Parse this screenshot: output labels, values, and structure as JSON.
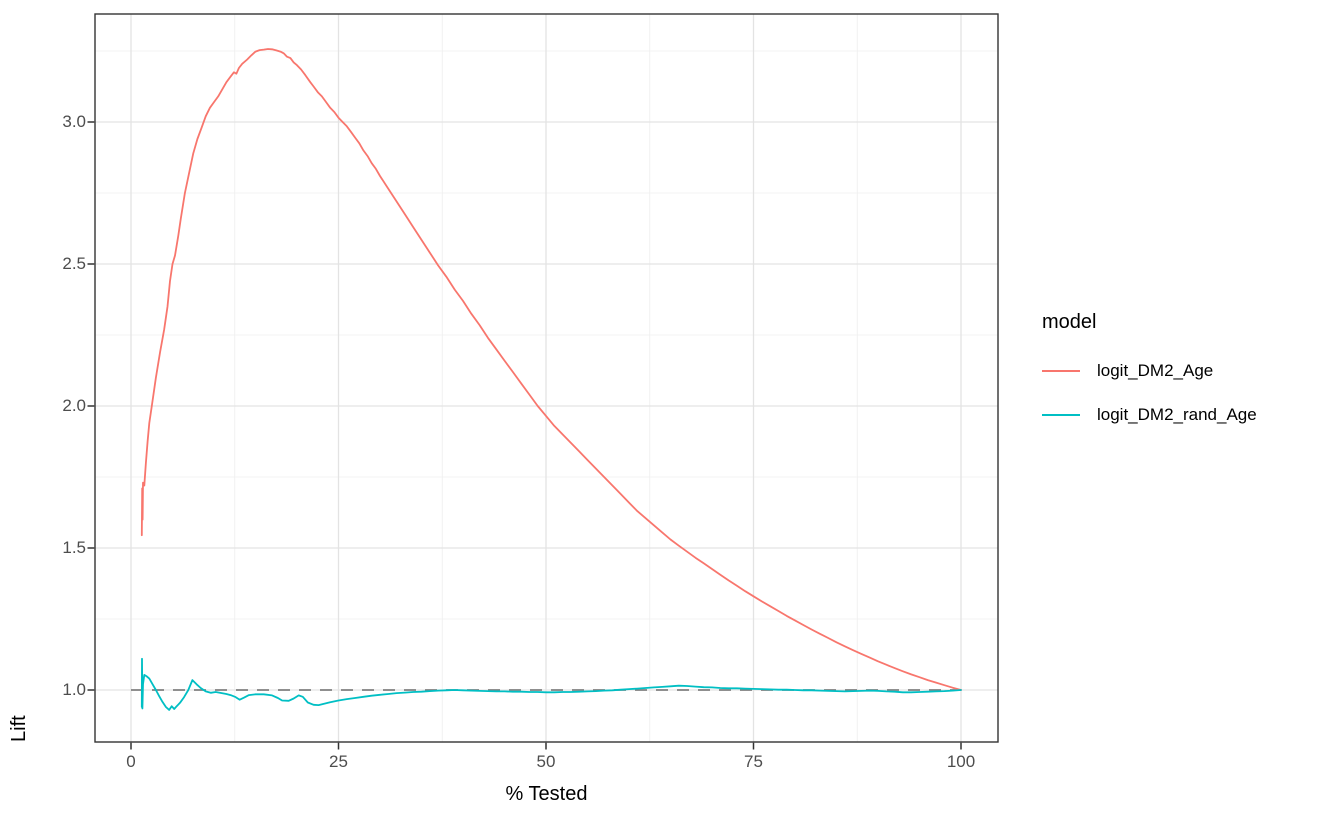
{
  "legend": {
    "title": "model",
    "items": [
      {
        "label": "logit_DM2_Age",
        "color": "#F8766D"
      },
      {
        "label": "logit_DM2_rand_Age",
        "color": "#00BFC4"
      }
    ]
  },
  "colors": {
    "series_red": "#F8766D",
    "series_teal": "#00BFC4",
    "reference_dash": "#808080",
    "grid_major": "#E3E3E3",
    "grid_minor": "#EFEFEF",
    "panel_border": "#343434",
    "tick_mark": "#333333",
    "tick_label": "#4d4d4d"
  },
  "chart_data": {
    "type": "line",
    "title": "",
    "xlabel": "% Tested",
    "ylabel": "Lift",
    "xlim": [
      0,
      100
    ],
    "ylim": [
      0.82,
      3.38
    ],
    "grid": true,
    "legend_position": "right",
    "legend_title": "model",
    "x_ticks": [
      {
        "value": 0,
        "label": "0"
      },
      {
        "value": 25,
        "label": "25"
      },
      {
        "value": 50,
        "label": "50"
      },
      {
        "value": 75,
        "label": "75"
      },
      {
        "value": 100,
        "label": "100"
      }
    ],
    "y_ticks": [
      {
        "value": 1.0,
        "label": "1.0"
      },
      {
        "value": 1.5,
        "label": "1.5"
      },
      {
        "value": 2.0,
        "label": "2.0"
      },
      {
        "value": 2.5,
        "label": "2.5"
      },
      {
        "value": 3.0,
        "label": "3.0"
      }
    ],
    "x_minor_gridlines": [
      12.5,
      37.5,
      62.5,
      87.5
    ],
    "y_minor_gridlines": [
      1.25,
      1.75,
      2.25,
      2.75,
      3.25
    ],
    "reference_line": {
      "y": 1.0,
      "style": "dashed",
      "color": "#808080",
      "x_start": 0,
      "x_end": 100
    },
    "series": [
      {
        "name": "logit_DM2_Age",
        "color": "#F8766D",
        "points": [
          [
            1.3,
            1.545
          ],
          [
            1.35,
            1.71
          ],
          [
            1.4,
            1.6
          ],
          [
            1.45,
            1.73
          ],
          [
            1.6,
            1.72
          ],
          [
            1.8,
            1.8
          ],
          [
            2,
            1.875
          ],
          [
            2.2,
            1.94
          ],
          [
            2.5,
            2.0
          ],
          [
            3,
            2.1
          ],
          [
            3.5,
            2.19
          ],
          [
            4,
            2.27
          ],
          [
            4.4,
            2.35
          ],
          [
            4.7,
            2.44
          ],
          [
            5,
            2.5
          ],
          [
            5.3,
            2.53
          ],
          [
            5.7,
            2.6
          ],
          [
            6,
            2.66
          ],
          [
            6.5,
            2.75
          ],
          [
            7,
            2.82
          ],
          [
            7.5,
            2.89
          ],
          [
            8,
            2.94
          ],
          [
            8.5,
            2.98
          ],
          [
            9,
            3.02
          ],
          [
            9.5,
            3.05
          ],
          [
            10,
            3.07
          ],
          [
            10.5,
            3.09
          ],
          [
            11,
            3.115
          ],
          [
            11.5,
            3.14
          ],
          [
            12,
            3.16
          ],
          [
            12.4,
            3.175
          ],
          [
            12.7,
            3.17
          ],
          [
            13,
            3.19
          ],
          [
            13.4,
            3.205
          ],
          [
            14,
            3.22
          ],
          [
            14.5,
            3.235
          ],
          [
            15,
            3.248
          ],
          [
            15.5,
            3.253
          ],
          [
            16,
            3.255
          ],
          [
            16.5,
            3.257
          ],
          [
            17,
            3.256
          ],
          [
            17.5,
            3.252
          ],
          [
            18,
            3.248
          ],
          [
            18.4,
            3.242
          ],
          [
            18.8,
            3.23
          ],
          [
            19.2,
            3.225
          ],
          [
            19.6,
            3.21
          ],
          [
            20,
            3.2
          ],
          [
            20.5,
            3.185
          ],
          [
            21,
            3.165
          ],
          [
            21.6,
            3.14
          ],
          [
            22,
            3.125
          ],
          [
            22.5,
            3.105
          ],
          [
            23,
            3.09
          ],
          [
            23.5,
            3.07
          ],
          [
            24,
            3.05
          ],
          [
            24.5,
            3.035
          ],
          [
            25,
            3.015
          ],
          [
            25.5,
            3.0
          ],
          [
            26,
            2.985
          ],
          [
            26.5,
            2.965
          ],
          [
            27,
            2.945
          ],
          [
            27.5,
            2.925
          ],
          [
            28,
            2.9
          ],
          [
            28.5,
            2.88
          ],
          [
            29,
            2.855
          ],
          [
            29.5,
            2.835
          ],
          [
            30,
            2.81
          ],
          [
            31,
            2.765
          ],
          [
            32,
            2.72
          ],
          [
            33,
            2.675
          ],
          [
            34,
            2.63
          ],
          [
            35,
            2.585
          ],
          [
            36,
            2.54
          ],
          [
            37,
            2.495
          ],
          [
            38,
            2.455
          ],
          [
            39,
            2.41
          ],
          [
            40,
            2.37
          ],
          [
            41,
            2.325
          ],
          [
            42,
            2.285
          ],
          [
            43,
            2.24
          ],
          [
            44,
            2.2
          ],
          [
            45,
            2.16
          ],
          [
            46,
            2.12
          ],
          [
            47,
            2.08
          ],
          [
            48,
            2.04
          ],
          [
            49,
            2.0
          ],
          [
            50,
            1.965
          ],
          [
            51,
            1.93
          ],
          [
            52,
            1.9
          ],
          [
            53,
            1.87
          ],
          [
            54,
            1.84
          ],
          [
            55,
            1.81
          ],
          [
            56,
            1.78
          ],
          [
            57,
            1.75
          ],
          [
            58,
            1.72
          ],
          [
            59,
            1.69
          ],
          [
            60,
            1.66
          ],
          [
            61,
            1.63
          ],
          [
            62,
            1.605
          ],
          [
            63,
            1.58
          ],
          [
            64,
            1.555
          ],
          [
            65,
            1.53
          ],
          [
            66,
            1.508
          ],
          [
            67,
            1.487
          ],
          [
            68,
            1.466
          ],
          [
            69,
            1.446
          ],
          [
            70,
            1.426
          ],
          [
            71,
            1.406
          ],
          [
            72,
            1.386
          ],
          [
            73,
            1.367
          ],
          [
            74,
            1.348
          ],
          [
            75,
            1.33
          ],
          [
            76,
            1.312
          ],
          [
            77,
            1.295
          ],
          [
            78,
            1.278
          ],
          [
            79,
            1.261
          ],
          [
            80,
            1.245
          ],
          [
            81,
            1.229
          ],
          [
            82,
            1.213
          ],
          [
            83,
            1.198
          ],
          [
            84,
            1.183
          ],
          [
            85,
            1.168
          ],
          [
            86,
            1.154
          ],
          [
            87,
            1.14
          ],
          [
            88,
            1.127
          ],
          [
            89,
            1.114
          ],
          [
            90,
            1.101
          ],
          [
            91,
            1.089
          ],
          [
            92,
            1.077
          ],
          [
            93,
            1.066
          ],
          [
            94,
            1.055
          ],
          [
            95,
            1.045
          ],
          [
            96,
            1.035
          ],
          [
            97,
            1.026
          ],
          [
            98,
            1.017
          ],
          [
            99,
            1.008
          ],
          [
            100,
            1.0
          ]
        ]
      },
      {
        "name": "logit_DM2_rand_Age",
        "color": "#00BFC4",
        "points": [
          [
            1.3,
            0.94
          ],
          [
            1.33,
            1.11
          ],
          [
            1.37,
            0.935
          ],
          [
            1.45,
            1.02
          ],
          [
            1.6,
            1.053
          ],
          [
            1.9,
            1.048
          ],
          [
            2.2,
            1.04
          ],
          [
            2.6,
            1.02
          ],
          [
            3,
            1.0
          ],
          [
            3.4,
            0.978
          ],
          [
            3.8,
            0.958
          ],
          [
            4.2,
            0.94
          ],
          [
            4.6,
            0.93
          ],
          [
            4.9,
            0.943
          ],
          [
            5.2,
            0.933
          ],
          [
            5.5,
            0.943
          ],
          [
            5.9,
            0.955
          ],
          [
            6.4,
            0.975
          ],
          [
            6.9,
            1.0
          ],
          [
            7.4,
            1.035
          ],
          [
            7.9,
            1.02
          ],
          [
            8.4,
            1.007
          ],
          [
            9,
            0.995
          ],
          [
            9.6,
            0.99
          ],
          [
            10.2,
            0.993
          ],
          [
            10.7,
            0.99
          ],
          [
            11.5,
            0.986
          ],
          [
            12,
            0.982
          ],
          [
            12.6,
            0.975
          ],
          [
            13.1,
            0.966
          ],
          [
            13.6,
            0.973
          ],
          [
            14.2,
            0.982
          ],
          [
            15,
            0.985
          ],
          [
            16,
            0.985
          ],
          [
            17,
            0.981
          ],
          [
            17.7,
            0.972
          ],
          [
            18.2,
            0.963
          ],
          [
            19,
            0.962
          ],
          [
            19.6,
            0.97
          ],
          [
            20.2,
            0.981
          ],
          [
            20.7,
            0.976
          ],
          [
            21.3,
            0.956
          ],
          [
            22,
            0.948
          ],
          [
            22.6,
            0.947
          ],
          [
            23.2,
            0.951
          ],
          [
            24,
            0.957
          ],
          [
            25,
            0.963
          ],
          [
            26,
            0.968
          ],
          [
            27,
            0.972
          ],
          [
            28,
            0.976
          ],
          [
            29,
            0.98
          ],
          [
            30,
            0.983
          ],
          [
            31,
            0.986
          ],
          [
            32,
            0.989
          ],
          [
            33,
            0.991
          ],
          [
            34,
            0.993
          ],
          [
            35,
            0.994
          ],
          [
            36,
            0.996
          ],
          [
            37,
            0.998
          ],
          [
            38,
            0.999
          ],
          [
            39,
            1.0
          ],
          [
            40,
            0.999
          ],
          [
            41,
            0.998
          ],
          [
            42,
            0.997
          ],
          [
            43,
            0.996
          ],
          [
            44,
            0.995
          ],
          [
            45,
            0.995
          ],
          [
            46,
            0.994
          ],
          [
            47,
            0.994
          ],
          [
            48,
            0.993
          ],
          [
            49,
            0.993
          ],
          [
            50,
            0.992
          ],
          [
            51,
            0.992
          ],
          [
            52,
            0.993
          ],
          [
            53,
            0.993
          ],
          [
            54,
            0.994
          ],
          [
            55,
            0.995
          ],
          [
            56,
            0.996
          ],
          [
            57,
            0.998
          ],
          [
            58,
            0.999
          ],
          [
            59,
            1.001
          ],
          [
            60,
            1.003
          ],
          [
            61,
            1.005
          ],
          [
            62,
            1.007
          ],
          [
            63,
            1.009
          ],
          [
            64,
            1.011
          ],
          [
            65,
            1.013
          ],
          [
            66,
            1.015
          ],
          [
            67,
            1.014
          ],
          [
            68,
            1.012
          ],
          [
            69,
            1.01
          ],
          [
            70,
            1.009
          ],
          [
            71,
            1.007
          ],
          [
            72,
            1.006
          ],
          [
            73,
            1.006
          ],
          [
            74,
            1.005
          ],
          [
            75,
            1.004
          ],
          [
            76,
            1.003
          ],
          [
            77,
            1.002
          ],
          [
            78,
            1.001
          ],
          [
            79,
            1.001
          ],
          [
            80,
            1.0
          ],
          [
            81,
            0.999
          ],
          [
            82,
            0.999
          ],
          [
            83,
            0.998
          ],
          [
            84,
            0.997
          ],
          [
            85,
            0.996
          ],
          [
            86,
            0.995
          ],
          [
            87,
            0.996
          ],
          [
            88,
            0.997
          ],
          [
            89,
            0.998
          ],
          [
            90,
            0.997
          ],
          [
            91,
            0.995
          ],
          [
            92,
            0.994
          ],
          [
            93,
            0.992
          ],
          [
            94,
            0.992
          ],
          [
            95,
            0.993
          ],
          [
            96,
            0.994
          ],
          [
            97,
            0.995
          ],
          [
            98,
            0.996
          ],
          [
            99,
            0.998
          ],
          [
            100,
            1.0
          ]
        ]
      }
    ]
  }
}
